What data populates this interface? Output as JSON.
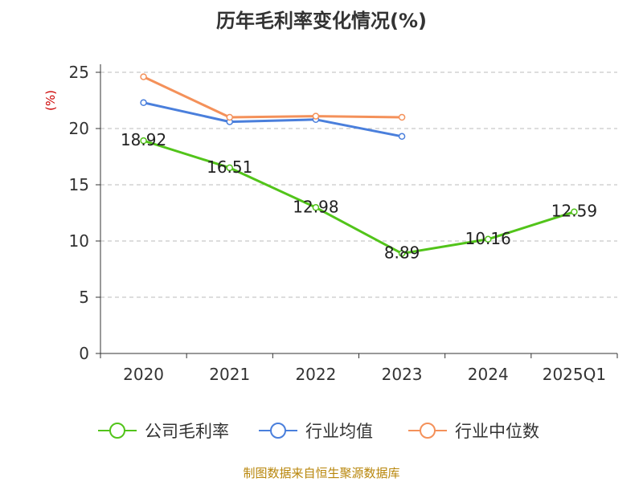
{
  "chart_data": {
    "type": "line",
    "title": "历年毛利率变化情况(%)",
    "ylabel": "(%)",
    "categories": [
      "2020",
      "2021",
      "2022",
      "2023",
      "2024",
      "2025Q1"
    ],
    "ylim": [
      0,
      25
    ],
    "yticks": [
      0,
      5,
      10,
      15,
      20,
      25
    ],
    "grid": true,
    "legend_position": "bottom",
    "series": [
      {
        "name": "公司毛利率",
        "color": "#52c41a",
        "values": [
          18.92,
          16.51,
          12.98,
          8.89,
          10.16,
          12.59
        ],
        "show_labels": true
      },
      {
        "name": "行业均值",
        "color": "#4a7fdc",
        "values": [
          22.3,
          20.6,
          20.8,
          19.3,
          null,
          null
        ],
        "show_labels": false
      },
      {
        "name": "行业中位数",
        "color": "#f4915a",
        "values": [
          24.6,
          21.0,
          21.1,
          21.0,
          null,
          null
        ],
        "show_labels": false
      }
    ]
  },
  "source_note": "制图数据来自恒生聚源数据库"
}
